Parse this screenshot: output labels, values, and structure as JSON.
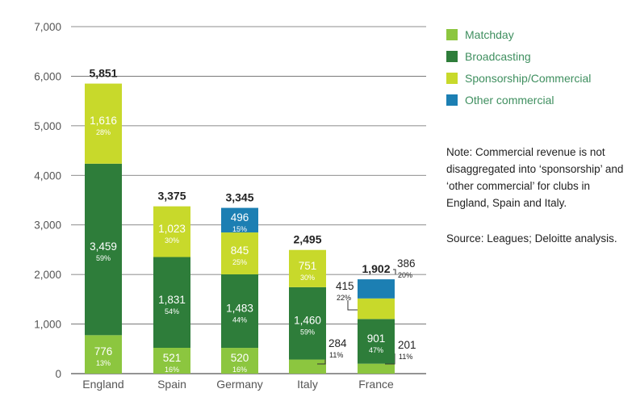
{
  "chart_data": {
    "type": "bar",
    "stacked": true,
    "categories": [
      "England",
      "Spain",
      "Germany",
      "Italy",
      "France"
    ],
    "series": [
      {
        "name": "Matchday",
        "color": "#8cc63f",
        "values": [
          776,
          521,
          520,
          284,
          201
        ],
        "pct": [
          "13%",
          "16%",
          "16%",
          "11%",
          "11%"
        ]
      },
      {
        "name": "Broadcasting",
        "color": "#2e7d3a",
        "values": [
          3459,
          1831,
          1483,
          1460,
          901
        ],
        "pct": [
          "59%",
          "54%",
          "44%",
          "59%",
          "47%"
        ]
      },
      {
        "name": "Sponsorship/Commercial",
        "color": "#c8d92b",
        "values": [
          1616,
          1023,
          845,
          751,
          415
        ],
        "pct": [
          "28%",
          "30%",
          "25%",
          "30%",
          "22%"
        ]
      },
      {
        "name": "Other commercial",
        "color": "#1c7fb3",
        "values": [
          null,
          null,
          496,
          null,
          386
        ],
        "pct": [
          "",
          "",
          "15%",
          "",
          "20%"
        ]
      }
    ],
    "totals": [
      "5,851",
      "3,375",
      "3,345",
      "2,495",
      "1,902"
    ],
    "yticks": [
      "0",
      "1,000",
      "2,000",
      "3,000",
      "4,000",
      "5,000",
      "6,000",
      "7,000"
    ],
    "ylim": [
      0,
      7000
    ],
    "grid": true,
    "legend_position": "right"
  },
  "legend": [
    "Matchday",
    "Broadcasting",
    "Sponsorship/Commercial",
    "Other commercial"
  ],
  "note": "Note: Commercial revenue is not disaggregated into ‘sponsorship’ and ‘other commercial’ for clubs in England, Spain and Italy.",
  "source": "Source: Leagues; Deloitte analysis."
}
